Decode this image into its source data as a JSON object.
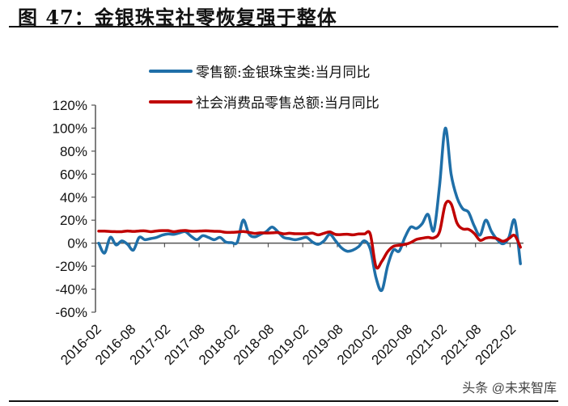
{
  "title": "图 47：金银珠宝社零恢复强于整体",
  "watermark": "头条 @未来智库",
  "chart_data": {
    "type": "line",
    "title": "图 47：金银珠宝社零恢复强于整体",
    "xlabel": "",
    "ylabel": "",
    "ylim": [
      -60,
      120
    ],
    "yticks": [
      "120%",
      "100%",
      "80%",
      "60%",
      "40%",
      "20%",
      "0%",
      "-20%",
      "-40%",
      "-60%"
    ],
    "ytick_values": [
      120,
      100,
      80,
      60,
      40,
      20,
      0,
      -20,
      -40,
      -60
    ],
    "xtick_labels": [
      "2016-02",
      "2016-08",
      "2017-02",
      "2017-08",
      "2018-02",
      "2018-08",
      "2019-02",
      "2019-08",
      "2020-02",
      "2020-08",
      "2021-02",
      "2021-08",
      "2022-02"
    ],
    "x_start": "2016-02",
    "x_end": "2022-03",
    "grid": false,
    "legend_placement": "top",
    "series": [
      {
        "name": "零售额:金银珠宝类:当月同比",
        "color": "#1f6fa8",
        "values": [
          0,
          -8.6,
          5,
          -1.5,
          2,
          -1,
          -6,
          5,
          3,
          4,
          5,
          7,
          8,
          7.7,
          9,
          10,
          6,
          3,
          6.5,
          5,
          3,
          5,
          1,
          0.5,
          1,
          20,
          8,
          5.5,
          7.7,
          10,
          14,
          10,
          5,
          4,
          3,
          4,
          5,
          1,
          -1,
          2,
          7.7,
          2,
          -4,
          -7,
          -6,
          -3,
          2,
          -5,
          -30,
          -41,
          -20,
          -6,
          -7,
          5,
          14,
          12.8,
          17,
          25,
          11,
          50,
          100,
          60,
          40,
          30,
          27,
          15,
          7,
          20,
          10,
          3,
          -0.5,
          5,
          19.8,
          -17.9
        ]
      },
      {
        "name": "社会消费品零售总额:当月同比",
        "color": "#c00000",
        "values": [
          10.5,
          10.5,
          10.1,
          10,
          10,
          10.6,
          10.2,
          10.6,
          10.7,
          10,
          10.6,
          10.9,
          10.9,
          10,
          10.7,
          11,
          10.4,
          10.4,
          10.7,
          10.7,
          10.3,
          10.2,
          9.4,
          9.4,
          9.7,
          10.1,
          9.4,
          8.5,
          9,
          8.8,
          9,
          9.2,
          8.1,
          8.6,
          8.2,
          8.2,
          8.2,
          8.7,
          7.2,
          8.6,
          9.8,
          7.6,
          7.5,
          7.8,
          7.2,
          8,
          8,
          8,
          -20.5,
          -15.8,
          -7.5,
          -2.8,
          -1.8,
          -1.1,
          0.5,
          3.3,
          4.3,
          5,
          4.6,
          10,
          33.8,
          34.2,
          17.7,
          12.4,
          12.1,
          8.5,
          2.5,
          4.4,
          4.9,
          3.9,
          1.7,
          4,
          6.7,
          -3.5
        ]
      }
    ]
  }
}
